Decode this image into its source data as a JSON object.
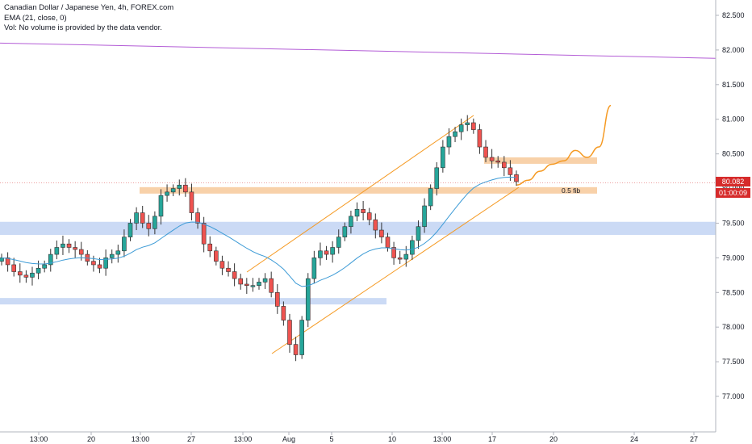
{
  "legend": {
    "title": "Canadian Dollar / Japanese Yen, 4h, FOREX.com",
    "ema": "EMA (21, close, 0)",
    "vol": "Vol: No volume is provided by the data vendor."
  },
  "price_tag": "80.082",
  "countdown": "01:00:09",
  "colors": {
    "up": "#26a69a",
    "down": "#ef5350",
    "ema": "#3d9bd6",
    "trendline": "#b35cd6",
    "channel": "#f59a23",
    "zone_orange": "#f7c99a",
    "zone_blue": "#b9cdf2",
    "last_price": "#d62b2b"
  },
  "chart_data": {
    "type": "candlestick",
    "symbol": "CADJPY",
    "timeframe": "4h",
    "y_ticks": [
      "82.500",
      "82.000",
      "81.500",
      "81.000",
      "80.500",
      "80.000",
      "79.500",
      "79.000",
      "78.500",
      "78.000",
      "77.500",
      "77.000"
    ],
    "x_ticks": [
      "13:00",
      "20",
      "13:00",
      "27",
      "13:00",
      "Aug",
      "5",
      "10",
      "13:00",
      "17",
      "20",
      "24",
      "27"
    ],
    "ylim": [
      76.6,
      82.7
    ],
    "ohlc_close_path": [
      79.0,
      78.9,
      78.8,
      78.75,
      78.72,
      78.78,
      78.85,
      78.9,
      79.05,
      79.15,
      79.2,
      79.15,
      79.12,
      79.05,
      78.95,
      78.9,
      78.85,
      79.0,
      79.05,
      79.1,
      79.3,
      79.5,
      79.65,
      79.5,
      79.42,
      79.6,
      79.9,
      79.95,
      80.0,
      80.05,
      79.95,
      79.65,
      79.5,
      79.2,
      79.1,
      78.95,
      78.85,
      78.8,
      78.7,
      78.62,
      78.6,
      78.6,
      78.65,
      78.7,
      78.5,
      78.3,
      78.1,
      77.75,
      77.6,
      78.1,
      78.7,
      79.0,
      79.1,
      79.05,
      79.15,
      79.3,
      79.45,
      79.6,
      79.7,
      79.65,
      79.55,
      79.4,
      79.3,
      79.15,
      79.0,
      78.98,
      79.05,
      79.25,
      79.45,
      79.75,
      80.0,
      80.3,
      80.6,
      80.75,
      80.82,
      80.92,
      80.95,
      80.85,
      80.6,
      80.45,
      80.4,
      80.38,
      80.3,
      80.2,
      80.1
    ],
    "ema_period": 21,
    "annotations": [
      {
        "type": "zone",
        "label": "0.5 fib",
        "price_range": [
          79.95,
          80.02
        ]
      },
      {
        "type": "zone",
        "price_range": [
          80.38,
          80.45
        ]
      },
      {
        "type": "zone",
        "price_range": [
          79.33,
          79.52
        ]
      },
      {
        "type": "zone",
        "price_range": [
          78.34,
          78.42
        ]
      },
      {
        "type": "trendline",
        "from_price": 82.1,
        "to_price": 81.88
      },
      {
        "type": "projection",
        "path": [
          80.05,
          80.12,
          80.25,
          80.35,
          80.4,
          80.55,
          80.45,
          80.6,
          81.2
        ]
      }
    ]
  }
}
